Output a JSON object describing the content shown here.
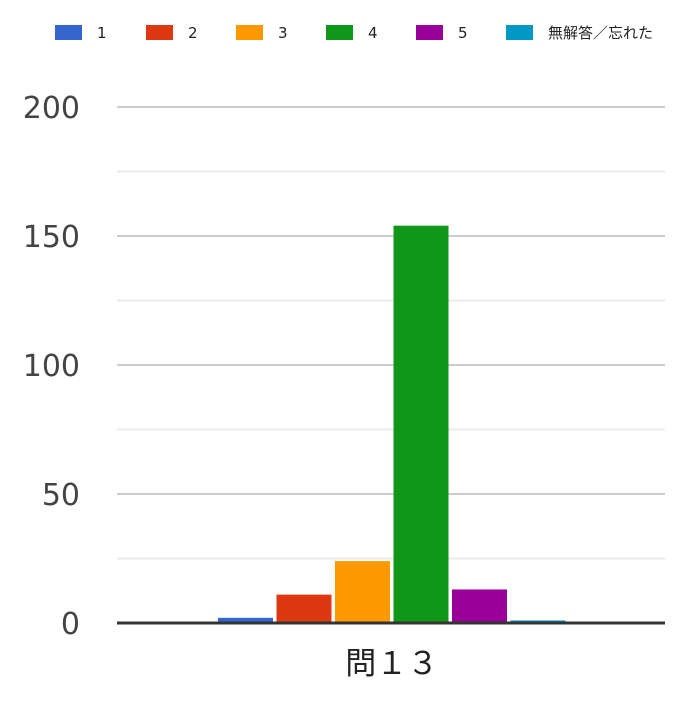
{
  "chart_data": {
    "type": "bar",
    "categories": [
      "問１３"
    ],
    "series": [
      {
        "name": "1",
        "values": [
          2
        ],
        "color": "#3366cc"
      },
      {
        "name": "2",
        "values": [
          11
        ],
        "color": "#dc3912"
      },
      {
        "name": "3",
        "values": [
          24
        ],
        "color": "#ff9900"
      },
      {
        "name": "4",
        "values": [
          154
        ],
        "color": "#109618"
      },
      {
        "name": "5",
        "values": [
          13
        ],
        "color": "#990099"
      },
      {
        "name": "無解答／忘れた",
        "values": [
          1
        ],
        "color": "#0099c6"
      }
    ],
    "yticks": [
      0,
      50,
      100,
      150,
      200
    ],
    "ylim": [
      0,
      200
    ],
    "minor_gridlines": [
      25,
      75,
      125,
      175
    ],
    "grid": true,
    "legend_position": "top",
    "title": "",
    "xlabel": "",
    "ylabel": ""
  }
}
